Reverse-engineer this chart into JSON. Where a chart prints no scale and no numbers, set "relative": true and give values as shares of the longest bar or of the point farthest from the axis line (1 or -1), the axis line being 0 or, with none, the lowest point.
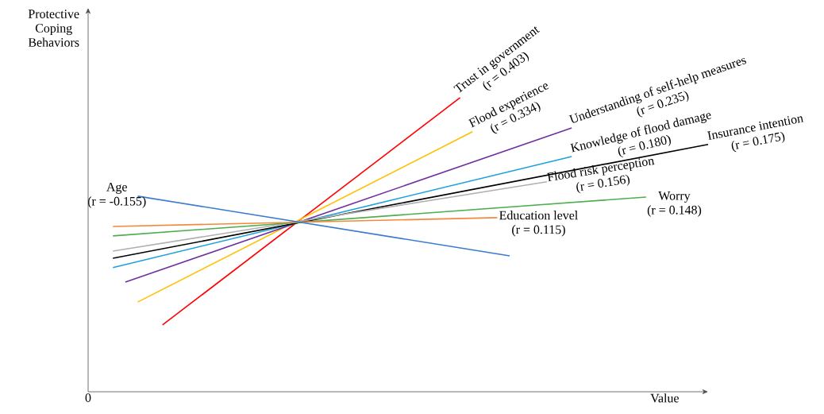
{
  "chart_data": {
    "type": "line",
    "relative": true,
    "xlabel": "Value",
    "ylabel": "Protective Coping Behaviors",
    "legend": false,
    "marker": "none",
    "line_style": "solid",
    "categories": [
      null,
      null,
      null,
      null,
      null,
      null,
      null,
      null,
      null,
      null,
      null,
      null,
      null,
      null,
      null,
      null,
      null,
      null,
      null,
      null,
      null,
      null,
      null,
      null,
      null,
      null,
      null,
      null,
      null,
      null,
      null,
      null,
      null,
      null,
      null,
      null,
      null,
      null,
      null,
      null,
      null,
      null,
      null,
      null,
      null,
      null,
      null,
      null,
      null,
      null,
      null
    ],
    "series": [
      {
        "name": "Trust in government",
        "color": "#ff0000",
        "values": [
          null,
          null,
          null,
          null,
          null,
          null,
          0.227,
          null,
          null,
          null,
          null,
          null,
          null,
          null,
          null,
          null,
          null,
          null,
          null,
          null,
          null,
          null,
          null,
          null,
          null,
          null,
          null,
          null,
          null,
          null,
          1.0,
          null,
          null,
          null,
          null,
          null,
          null,
          null,
          null,
          null,
          null,
          null,
          null,
          null,
          null,
          null,
          null,
          null,
          null,
          null,
          null
        ]
      },
      {
        "name": "Flood experience",
        "color": "#ffc000",
        "values": [
          null,
          null,
          null,
          null,
          0.305,
          null,
          null,
          null,
          null,
          null,
          null,
          null,
          null,
          null,
          null,
          null,
          null,
          null,
          null,
          null,
          null,
          null,
          null,
          null,
          null,
          null,
          null,
          null,
          null,
          null,
          null,
          0.884,
          null,
          null,
          null,
          null,
          null,
          null,
          null,
          null,
          null,
          null,
          null,
          null,
          null,
          null,
          null,
          null,
          null,
          null,
          null
        ]
      },
      {
        "name": "Understanding of self-help measures",
        "color": "#7030a0",
        "values": [
          null,
          null,
          null,
          0.373,
          null,
          null,
          null,
          null,
          null,
          null,
          null,
          null,
          null,
          null,
          null,
          null,
          null,
          null,
          null,
          null,
          null,
          null,
          null,
          null,
          null,
          null,
          null,
          null,
          null,
          null,
          null,
          null,
          null,
          null,
          null,
          null,
          null,
          null,
          null,
          0.897,
          null,
          null,
          null,
          null,
          null,
          null,
          null,
          null,
          null,
          null,
          null
        ]
      },
      {
        "name": "Knowledge of flood damage",
        "color": "#1ea0dc",
        "values": [
          null,
          null,
          0.422,
          null,
          null,
          null,
          null,
          null,
          null,
          null,
          null,
          null,
          null,
          null,
          null,
          null,
          null,
          null,
          null,
          null,
          null,
          null,
          null,
          null,
          null,
          null,
          null,
          null,
          null,
          null,
          null,
          null,
          null,
          null,
          null,
          null,
          null,
          null,
          null,
          0.8,
          null,
          null,
          null,
          null,
          null,
          null,
          null,
          null,
          null,
          null,
          null
        ]
      },
      {
        "name": "Insurance intention",
        "color": "#000000",
        "values": [
          null,
          null,
          0.454,
          null,
          null,
          null,
          null,
          null,
          null,
          null,
          null,
          null,
          null,
          null,
          null,
          null,
          null,
          null,
          null,
          null,
          null,
          null,
          null,
          null,
          null,
          null,
          null,
          null,
          null,
          null,
          null,
          null,
          null,
          null,
          null,
          null,
          null,
          null,
          null,
          null,
          null,
          null,
          null,
          null,
          null,
          null,
          null,
          null,
          null,
          null,
          0.841
        ]
      },
      {
        "name": "Flood risk perception",
        "color": "#b0b0b0",
        "values": [
          null,
          null,
          0.478,
          null,
          null,
          null,
          null,
          null,
          null,
          null,
          null,
          null,
          null,
          null,
          null,
          null,
          null,
          null,
          null,
          null,
          null,
          null,
          null,
          null,
          null,
          null,
          null,
          null,
          null,
          null,
          null,
          null,
          null,
          null,
          null,
          null,
          null,
          0.714,
          null,
          null,
          null,
          null,
          null,
          null,
          null,
          null,
          null,
          null,
          null,
          null,
          null
        ]
      },
      {
        "name": "Worry",
        "color": "#4cae4c",
        "values": [
          null,
          null,
          0.53,
          null,
          null,
          null,
          null,
          null,
          null,
          null,
          null,
          null,
          null,
          null,
          null,
          null,
          null,
          null,
          null,
          null,
          null,
          null,
          null,
          null,
          null,
          null,
          null,
          null,
          null,
          null,
          null,
          null,
          null,
          null,
          null,
          null,
          null,
          null,
          null,
          null,
          null,
          null,
          null,
          null,
          null,
          0.662,
          null,
          null,
          null,
          null,
          null
        ]
      },
      {
        "name": "Education level",
        "color": "#f5883a",
        "values": [
          null,
          null,
          0.562,
          null,
          null,
          null,
          null,
          null,
          null,
          null,
          null,
          null,
          null,
          null,
          null,
          null,
          null,
          null,
          null,
          null,
          null,
          null,
          null,
          null,
          null,
          null,
          null,
          null,
          null,
          null,
          null,
          null,
          null,
          0.592,
          null,
          null,
          null,
          null,
          null,
          null,
          null,
          null,
          null,
          null,
          null,
          null,
          null,
          null,
          null,
          null,
          null
        ]
      },
      {
        "name": "Age",
        "color": "#3a7bd0",
        "values": [
          null,
          null,
          null,
          null,
          0.665,
          null,
          null,
          null,
          null,
          null,
          null,
          null,
          null,
          null,
          null,
          null,
          null,
          null,
          null,
          null,
          null,
          null,
          null,
          null,
          null,
          null,
          null,
          null,
          null,
          null,
          null,
          null,
          null,
          null,
          0.462,
          null,
          null,
          null,
          null,
          null,
          null,
          null,
          null,
          null,
          null,
          null,
          null,
          null,
          null,
          null,
          null
        ]
      }
    ],
    "annotations": [
      "0",
      "(r = 0.403)",
      "(r = 0.334)",
      "(r = 0.235)",
      "(r = 0.180)",
      "(r = 0.175)",
      "(r = 0.156)",
      "(r = 0.148)",
      "(r = 0.115)",
      "(r = -0.155)"
    ]
  }
}
